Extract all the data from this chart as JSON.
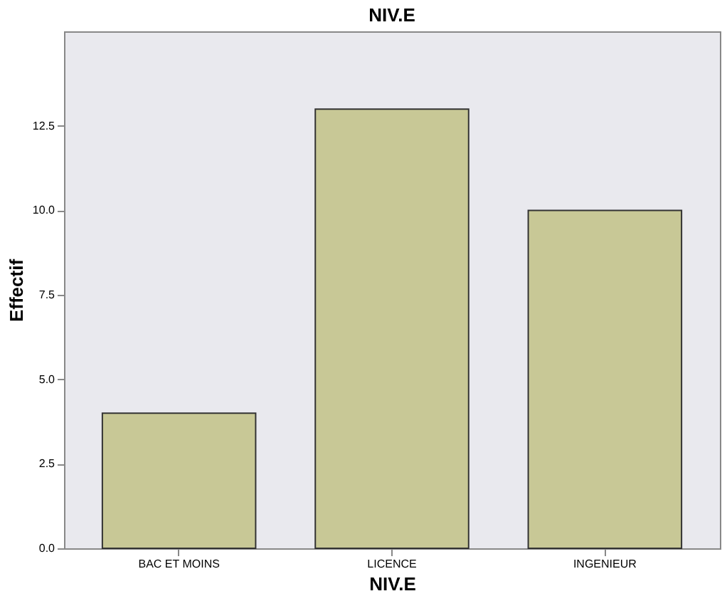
{
  "chart_data": {
    "type": "bar",
    "title": "NIV.E",
    "xlabel": "NIV.E",
    "ylabel": "Effectif",
    "categories": [
      "BAC ET MOINS",
      "LICENCE",
      "INGENIEUR"
    ],
    "values": [
      4,
      13,
      10
    ],
    "color": "#c8c896",
    "ylim": [
      0,
      15.3
    ],
    "yticks": [
      {
        "value": 0,
        "label": "0.0"
      },
      {
        "value": 2.5,
        "label": "2.5"
      },
      {
        "value": 5,
        "label": "5.0"
      },
      {
        "value": 7.5,
        "label": "7.5"
      },
      {
        "value": 10,
        "label": "10.0"
      },
      {
        "value": 12.5,
        "label": "12.5"
      }
    ],
    "grid": false
  }
}
